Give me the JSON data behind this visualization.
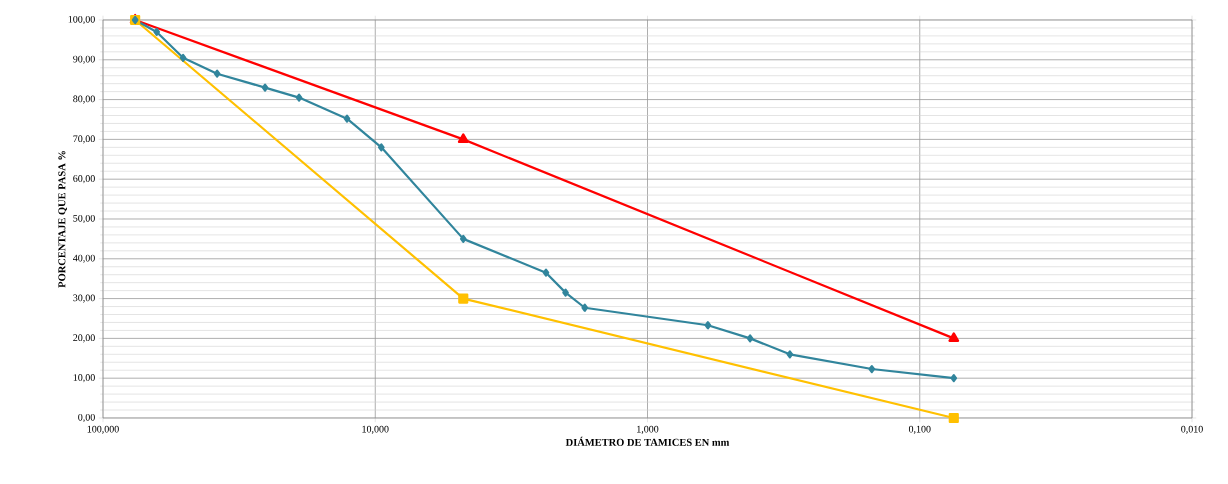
{
  "chart_data": {
    "type": "line",
    "xlabel": "DIÁMETRO DE TAMICES EN mm",
    "ylabel": "PORCENTAJE QUE PASA %",
    "log": "x",
    "grid": true,
    "xlim": [
      100,
      0.01
    ],
    "ylim": [
      0,
      100
    ],
    "xticks": [
      {
        "value": 100,
        "label": "100,000"
      },
      {
        "value": 10,
        "label": "10,000"
      },
      {
        "value": 1,
        "label": "1,000"
      },
      {
        "value": 0.1,
        "label": "0,100"
      },
      {
        "value": 0.01,
        "label": "0,010"
      }
    ],
    "yticks": [
      {
        "value": 0,
        "label": "0,00"
      },
      {
        "value": 10,
        "label": "10,00"
      },
      {
        "value": 20,
        "label": "20,00"
      },
      {
        "value": 30,
        "label": "30,00"
      },
      {
        "value": 40,
        "label": "40,00"
      },
      {
        "value": 50,
        "label": "50,00"
      },
      {
        "value": 60,
        "label": "60,00"
      },
      {
        "value": 70,
        "label": "70,00"
      },
      {
        "value": 80,
        "label": "80,00"
      },
      {
        "value": 90,
        "label": "90,00"
      },
      {
        "value": 100,
        "label": "100,00"
      }
    ],
    "series": [
      {
        "color": "#ff0000",
        "marker": "triangle",
        "x": [
          76.2,
          4.75,
          0.075
        ],
        "values": [
          100,
          70,
          20
        ]
      },
      {
        "color": "#ffc000",
        "marker": "square",
        "x": [
          76.2,
          4.75,
          0.075
        ],
        "values": [
          100,
          30,
          0
        ]
      },
      {
        "color": "#31859c",
        "marker": "diamond",
        "x": [
          76.2,
          63.5,
          50.8,
          38.1,
          25.4,
          19.05,
          12.7,
          9.5,
          4.75,
          2.36,
          2.0,
          1.7,
          0.6,
          0.42,
          0.3,
          0.15,
          0.075
        ],
        "values": [
          100,
          97,
          90.5,
          86.5,
          83,
          80.5,
          75.2,
          68,
          45,
          36.5,
          31.5,
          27.7,
          23.3,
          20,
          16,
          12.3,
          10
        ]
      }
    ]
  }
}
